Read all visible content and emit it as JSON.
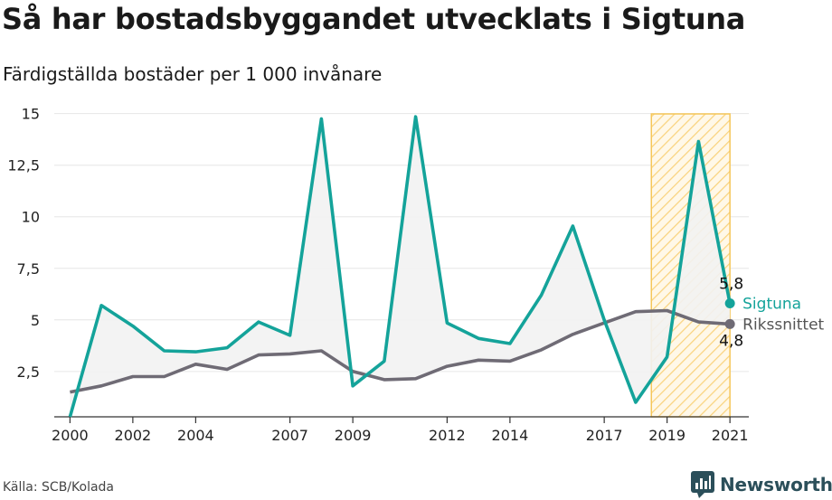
{
  "title": "Så har bostadsbyggandet utvecklats i Sigtuna",
  "subtitle": "Färdigställda bostäder per 1 000 invånare",
  "source": "Källa: SCB/Kolada",
  "brand": {
    "name": "Newsworthy",
    "icon": "newsworthy-logo-icon"
  },
  "colors": {
    "sigtuna": "#14a39a",
    "riket": "#6f6b75",
    "highlight": "#f6c75a",
    "axis": "#333333",
    "grid": "#e6e6e6",
    "fill": "#f2f2f2",
    "brand": "#2b4f5a"
  },
  "chart_data": {
    "type": "line",
    "x": [
      2000,
      2001,
      2002,
      2003,
      2004,
      2005,
      2006,
      2007,
      2008,
      2009,
      2010,
      2011,
      2012,
      2013,
      2014,
      2015,
      2016,
      2017,
      2018,
      2019,
      2020,
      2021
    ],
    "x_ticks": [
      2000,
      2002,
      2004,
      2007,
      2009,
      2012,
      2014,
      2017,
      2019,
      2021
    ],
    "x_tick_labels": [
      "2000",
      "2002",
      "2004",
      "2007",
      "2009",
      "2012",
      "2014",
      "2017",
      "2019",
      "2021"
    ],
    "y_ticks": [
      2.5,
      5,
      7.5,
      10,
      12.5,
      15
    ],
    "y_tick_labels": [
      "2,5",
      "5",
      "7,5",
      "10",
      "12,5",
      "15"
    ],
    "ylim": [
      0.3,
      15.6
    ],
    "xlim": [
      1999.5,
      2021.6
    ],
    "highlight_range": [
      2018.5,
      2021
    ],
    "series": [
      {
        "name": "Sigtuna",
        "values": [
          0.3,
          5.7,
          4.7,
          3.5,
          3.45,
          3.65,
          4.9,
          4.25,
          14.75,
          1.8,
          3.0,
          14.85,
          4.85,
          4.1,
          3.85,
          6.2,
          9.55,
          5.0,
          1.0,
          3.2,
          13.65,
          5.8
        ],
        "end_label": "5,8"
      },
      {
        "name": "Rikssnittet",
        "values": [
          1.5,
          1.8,
          2.25,
          2.25,
          2.85,
          2.6,
          3.3,
          3.35,
          3.5,
          2.5,
          2.1,
          2.15,
          2.75,
          3.05,
          3.0,
          3.55,
          4.3,
          4.85,
          5.4,
          5.45,
          4.9,
          4.8
        ],
        "end_label": "4,8"
      }
    ],
    "grid": true,
    "legend": "end-of-line labels"
  }
}
